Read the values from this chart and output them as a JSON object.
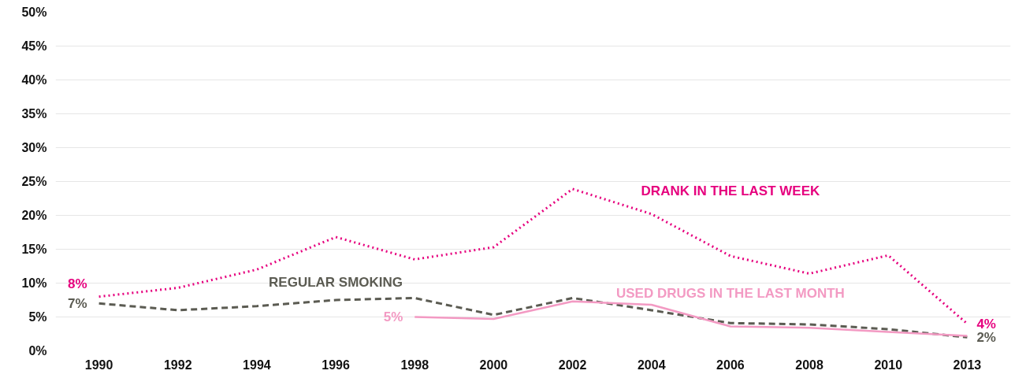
{
  "chart_data": {
    "type": "line",
    "categories": [
      "1990",
      "1992",
      "1994",
      "1996",
      "1998",
      "2000",
      "2002",
      "2004",
      "2006",
      "2008",
      "2010",
      "2013"
    ],
    "series": [
      {
        "name": "DRANK IN THE LAST WEEK",
        "color": "#e6007e",
        "line_style": "dotted",
        "values": [
          8,
          9.3,
          12,
          16.8,
          13.5,
          15.3,
          23.9,
          20.2,
          14,
          11.4,
          14.1,
          4
        ]
      },
      {
        "name": "REGULAR SMOKING",
        "color": "#5b5b52",
        "line_style": "dashed",
        "values": [
          7,
          6,
          6.6,
          7.5,
          7.8,
          5.3,
          7.8,
          6,
          4.1,
          3.9,
          3.2,
          2
        ]
      },
      {
        "name": "USED DRUGS IN THE LAST MONTH",
        "color": "#f39ac3",
        "line_style": "solid",
        "values": [
          null,
          null,
          null,
          null,
          5,
          4.7,
          7.3,
          6.8,
          3.6,
          3.4,
          2.8,
          2.2
        ]
      }
    ],
    "annotations": [
      {
        "text": "8%",
        "x": "1990",
        "y": 8
      },
      {
        "text": "7%",
        "x": "1990",
        "y": 7
      },
      {
        "text": "5%",
        "x": "1998",
        "y": 5
      },
      {
        "text": "4%",
        "x": "2013",
        "y": 4
      },
      {
        "text": "2%",
        "x": "2013",
        "y": 2
      }
    ],
    "ylim": [
      0,
      50
    ],
    "yticks": [
      {
        "value": 0,
        "label": "0%"
      },
      {
        "value": 5,
        "label": "5%"
      },
      {
        "value": 10,
        "label": "10%"
      },
      {
        "value": 15,
        "label": "15%"
      },
      {
        "value": 20,
        "label": "20%"
      },
      {
        "value": 25,
        "label": "25%"
      },
      {
        "value": 30,
        "label": "30%"
      },
      {
        "value": 35,
        "label": "35%"
      },
      {
        "value": 40,
        "label": "40%"
      },
      {
        "value": 45,
        "label": "45%"
      },
      {
        "value": 50,
        "label": "50%"
      }
    ],
    "grid": "y",
    "marker": "none"
  }
}
